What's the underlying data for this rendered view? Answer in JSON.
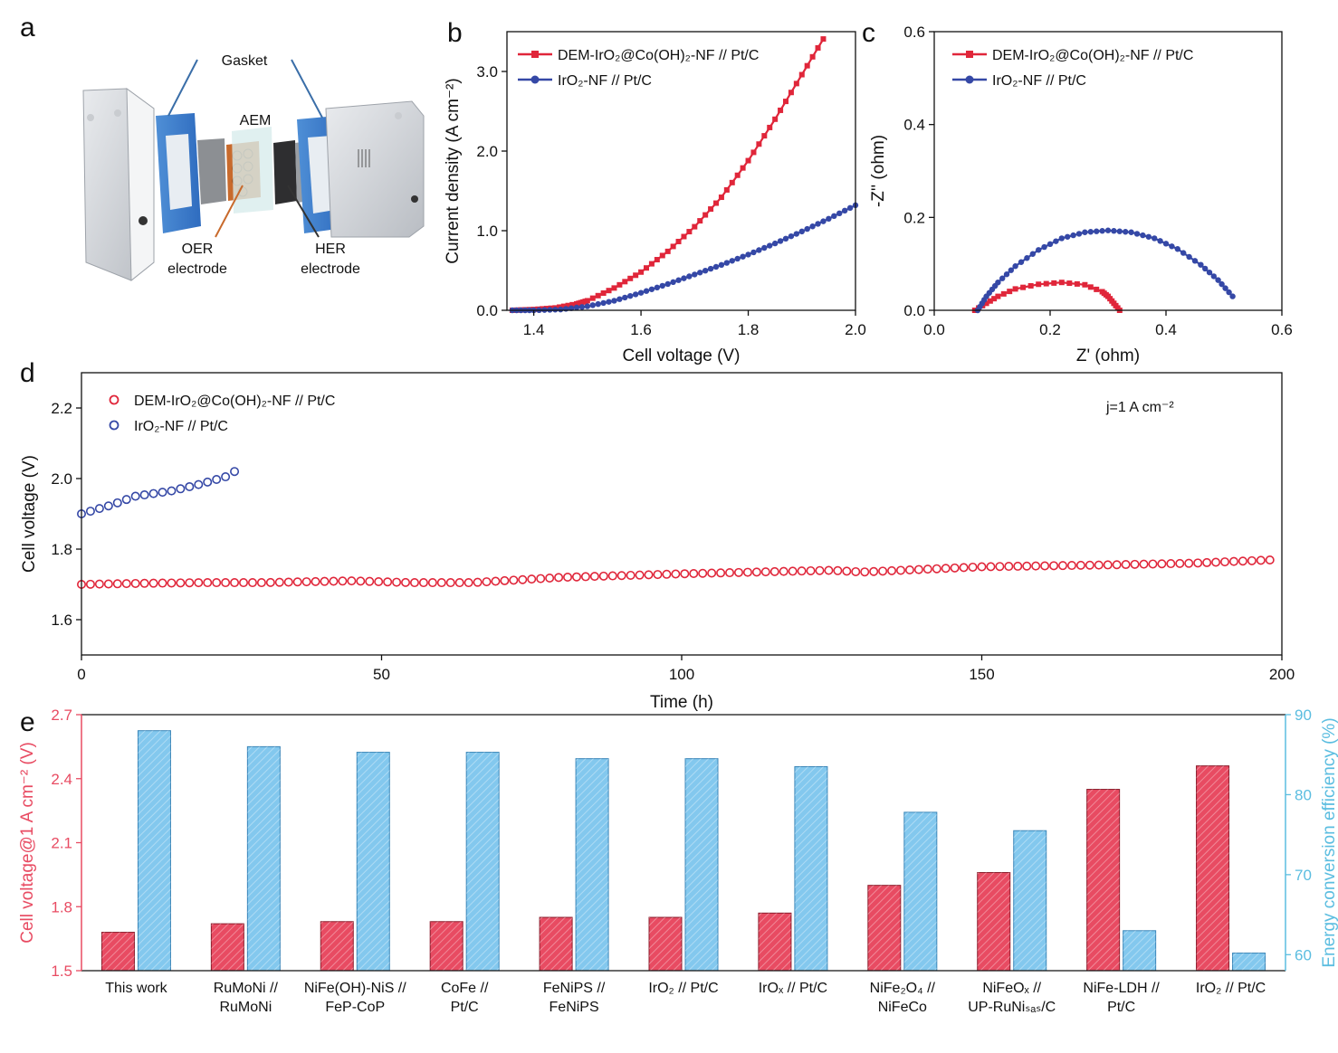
{
  "panels": {
    "a": {
      "label": "a",
      "gasket": "Gasket",
      "aem": "AEM",
      "oer_line1": "OER",
      "oer_line2": "electrode",
      "her_line1": "HER",
      "her_line2": "electrode"
    },
    "b_label": "b",
    "c_label": "c",
    "d_label": "d",
    "e_label": "e"
  },
  "colors": {
    "red": "#e0263a",
    "blue": "#3548a6",
    "bar_red": "#e84b62",
    "bar_blue": "#83c8ee",
    "right_axis": "#5bbde0"
  },
  "chart_data": [
    {
      "id": "b",
      "type": "line",
      "xlabel": "Cell voltage (V)",
      "ylabel": "Current density (A cm⁻²)",
      "xlim": [
        1.35,
        2.0
      ],
      "ylim": [
        0,
        3.5
      ],
      "xticks": [
        "1.4",
        "1.6",
        "1.8",
        "2.0"
      ],
      "yticks": [
        "0.0",
        "1.0",
        "2.0",
        "3.0"
      ],
      "series": [
        {
          "name": "DEM-IrO₂@Co(OH)₂-NF // Pt/C",
          "x": [
            1.36,
            1.4,
            1.44,
            1.48,
            1.5,
            1.55,
            1.6,
            1.65,
            1.7,
            1.75,
            1.8,
            1.85,
            1.9,
            1.95
          ],
          "y": [
            0.0,
            0.01,
            0.03,
            0.08,
            0.12,
            0.28,
            0.48,
            0.74,
            1.05,
            1.42,
            1.88,
            2.4,
            2.96,
            3.52
          ]
        },
        {
          "name": "IrO₂-NF // Pt/C",
          "x": [
            1.36,
            1.4,
            1.45,
            1.5,
            1.55,
            1.6,
            1.65,
            1.7,
            1.75,
            1.8,
            1.85,
            1.9,
            1.95,
            2.0
          ],
          "y": [
            0.0,
            0.0,
            0.01,
            0.05,
            0.12,
            0.22,
            0.33,
            0.45,
            0.57,
            0.7,
            0.84,
            0.99,
            1.15,
            1.32
          ]
        }
      ]
    },
    {
      "id": "c",
      "type": "line",
      "xlabel": "Z' (ohm)",
      "ylabel": "-Z'' (ohm)",
      "xlim": [
        0.0,
        0.6
      ],
      "ylim": [
        0.0,
        0.6
      ],
      "xticks": [
        "0.0",
        "0.2",
        "0.4",
        "0.6"
      ],
      "yticks": [
        "0.0",
        "0.2",
        "0.4",
        "0.6"
      ],
      "series": [
        {
          "name": "DEM-IrO₂@Co(OH)₂-NF // Pt/C",
          "x": [
            0.07,
            0.09,
            0.11,
            0.14,
            0.18,
            0.22,
            0.26,
            0.29,
            0.3,
            0.31,
            0.32
          ],
          "y": [
            0.0,
            0.015,
            0.03,
            0.046,
            0.056,
            0.06,
            0.055,
            0.04,
            0.03,
            0.015,
            0.0
          ]
        },
        {
          "name": "IrO₂-NF // Pt/C",
          "x": [
            0.075,
            0.09,
            0.11,
            0.14,
            0.18,
            0.22,
            0.26,
            0.3,
            0.34,
            0.38,
            0.42,
            0.46,
            0.49,
            0.515
          ],
          "y": [
            0.0,
            0.03,
            0.06,
            0.095,
            0.13,
            0.155,
            0.168,
            0.172,
            0.168,
            0.155,
            0.132,
            0.098,
            0.065,
            0.03
          ]
        }
      ]
    },
    {
      "id": "d",
      "type": "scatter",
      "xlabel": "Time (h)",
      "ylabel": "Cell voltage (V)",
      "xlim": [
        0,
        200
      ],
      "ylim": [
        1.5,
        2.3
      ],
      "xticks": [
        "0",
        "50",
        "100",
        "150",
        "200"
      ],
      "yticks": [
        "1.6",
        "1.8",
        "2.0",
        "2.2"
      ],
      "annotation": "j=1 A cm⁻²",
      "series": [
        {
          "name": "DEM-IrO₂@Co(OH)₂-NF // Pt/C",
          "x": [
            0,
            10,
            20,
            30,
            45,
            55,
            65,
            80,
            100,
            125,
            130,
            150,
            170,
            185,
            199
          ],
          "y": [
            1.7,
            1.703,
            1.705,
            1.705,
            1.71,
            1.705,
            1.705,
            1.72,
            1.73,
            1.74,
            1.735,
            1.75,
            1.755,
            1.76,
            1.77
          ]
        },
        {
          "name": "IrO₂-NF // Pt/C",
          "x": [
            0,
            5,
            9,
            15,
            20,
            24,
            26
          ],
          "y": [
            1.9,
            1.925,
            1.95,
            1.965,
            1.985,
            2.005,
            2.025
          ]
        }
      ]
    },
    {
      "id": "e",
      "type": "bar",
      "ylabel": "Cell voltage@1 A cm⁻² (V)",
      "y2label": "Energy conversion efficiency (%)",
      "ylim": [
        1.5,
        2.7
      ],
      "y2lim": [
        58,
        90
      ],
      "yticks": [
        "1.5",
        "1.8",
        "2.1",
        "2.4",
        "2.7"
      ],
      "y2ticks": [
        "60",
        "70",
        "80",
        "90"
      ],
      "categories": [
        [
          "This work"
        ],
        [
          "RuMoNi //",
          "RuMoNi"
        ],
        [
          "NiFe(OH)-NiS //",
          "FeP-CoP"
        ],
        [
          "CoFe //",
          "Pt/C"
        ],
        [
          "FeNiPS //",
          "FeNiPS"
        ],
        [
          "IrO₂ // Pt/C"
        ],
        [
          "IrOₓ // Pt/C"
        ],
        [
          "NiFe₂O₄ //",
          "NiFeCo"
        ],
        [
          "NiFeOₓ //",
          "UP-RuNiₛₐₛ/C"
        ],
        [
          "NiFe-LDH //",
          "Pt/C"
        ],
        [
          "IrO₂ // Pt/C"
        ]
      ],
      "series": [
        {
          "name": "Cell voltage",
          "values": [
            1.68,
            1.72,
            1.73,
            1.73,
            1.75,
            1.75,
            1.77,
            1.9,
            1.96,
            2.35,
            2.46
          ]
        },
        {
          "name": "Energy conversion efficiency",
          "values": [
            88.0,
            86.0,
            85.3,
            85.3,
            84.5,
            84.5,
            83.5,
            77.8,
            75.5,
            63.0,
            60.2
          ]
        }
      ]
    }
  ]
}
